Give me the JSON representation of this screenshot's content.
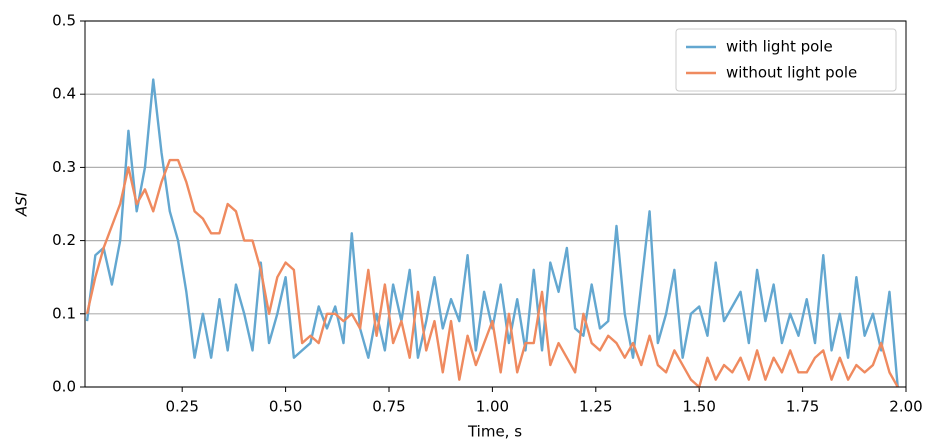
{
  "chart_data": {
    "type": "line",
    "xlabel": "Time, s",
    "ylabel": "ASI",
    "x": [
      0.02,
      0.04,
      0.06,
      0.08,
      0.1,
      0.12,
      0.14,
      0.16,
      0.18,
      0.2,
      0.22,
      0.24,
      0.26,
      0.28,
      0.3,
      0.32,
      0.34,
      0.36,
      0.38,
      0.4,
      0.42,
      0.44,
      0.46,
      0.48,
      0.5,
      0.52,
      0.54,
      0.56,
      0.58,
      0.6,
      0.62,
      0.64,
      0.66,
      0.68,
      0.7,
      0.72,
      0.74,
      0.76,
      0.78,
      0.8,
      0.82,
      0.84,
      0.86,
      0.88,
      0.9,
      0.92,
      0.94,
      0.96,
      0.98,
      1.0,
      1.02,
      1.04,
      1.06,
      1.08,
      1.1,
      1.12,
      1.14,
      1.16,
      1.18,
      1.2,
      1.22,
      1.24,
      1.26,
      1.28,
      1.3,
      1.32,
      1.34,
      1.36,
      1.38,
      1.4,
      1.42,
      1.44,
      1.46,
      1.48,
      1.5,
      1.52,
      1.54,
      1.56,
      1.58,
      1.6,
      1.62,
      1.64,
      1.66,
      1.68,
      1.7,
      1.72,
      1.74,
      1.76,
      1.78,
      1.8,
      1.82,
      1.84,
      1.86,
      1.88,
      1.9,
      1.92,
      1.94,
      1.96,
      1.98
    ],
    "series": [
      {
        "name": "with light pole",
        "color": "#63a7d0",
        "values": [
          0.09,
          0.18,
          0.19,
          0.14,
          0.2,
          0.35,
          0.24,
          0.3,
          0.42,
          0.32,
          0.24,
          0.2,
          0.13,
          0.04,
          0.1,
          0.04,
          0.12,
          0.05,
          0.14,
          0.1,
          0.05,
          0.17,
          0.06,
          0.1,
          0.15,
          0.04,
          0.05,
          0.06,
          0.11,
          0.08,
          0.11,
          0.06,
          0.21,
          0.08,
          0.04,
          0.1,
          0.05,
          0.14,
          0.09,
          0.16,
          0.04,
          0.09,
          0.15,
          0.08,
          0.12,
          0.09,
          0.18,
          0.05,
          0.13,
          0.08,
          0.14,
          0.06,
          0.12,
          0.05,
          0.16,
          0.05,
          0.17,
          0.13,
          0.19,
          0.08,
          0.07,
          0.14,
          0.08,
          0.09,
          0.22,
          0.1,
          0.04,
          0.14,
          0.24,
          0.06,
          0.1,
          0.16,
          0.04,
          0.1,
          0.11,
          0.07,
          0.17,
          0.09,
          0.11,
          0.13,
          0.06,
          0.16,
          0.09,
          0.14,
          0.06,
          0.1,
          0.07,
          0.12,
          0.06,
          0.18,
          0.05,
          0.1,
          0.04,
          0.15,
          0.07,
          0.1,
          0.05,
          0.13,
          0.0
        ]
      },
      {
        "name": "without light pole",
        "color": "#ef8a5f",
        "values": [
          0.1,
          0.15,
          0.19,
          0.22,
          0.25,
          0.3,
          0.25,
          0.27,
          0.24,
          0.28,
          0.31,
          0.31,
          0.28,
          0.24,
          0.23,
          0.21,
          0.21,
          0.25,
          0.24,
          0.2,
          0.2,
          0.16,
          0.1,
          0.15,
          0.17,
          0.16,
          0.06,
          0.07,
          0.06,
          0.1,
          0.1,
          0.09,
          0.1,
          0.08,
          0.16,
          0.07,
          0.14,
          0.06,
          0.09,
          0.04,
          0.13,
          0.05,
          0.09,
          0.02,
          0.09,
          0.01,
          0.07,
          0.03,
          0.06,
          0.09,
          0.02,
          0.1,
          0.02,
          0.06,
          0.06,
          0.13,
          0.03,
          0.06,
          0.04,
          0.02,
          0.1,
          0.06,
          0.05,
          0.07,
          0.06,
          0.04,
          0.06,
          0.03,
          0.07,
          0.03,
          0.02,
          0.05,
          0.03,
          0.01,
          0.0,
          0.04,
          0.01,
          0.03,
          0.02,
          0.04,
          0.01,
          0.05,
          0.01,
          0.04,
          0.02,
          0.05,
          0.02,
          0.02,
          0.04,
          0.05,
          0.01,
          0.04,
          0.01,
          0.03,
          0.02,
          0.03,
          0.06,
          0.02,
          0.0
        ]
      }
    ],
    "xlim": [
      0.015,
      2.0
    ],
    "xticks": [
      0.25,
      {
        "value": 0.5,
        "label": "0.50"
      },
      0.75,
      {
        "value": 1.0,
        "label": "1.00"
      },
      1.25,
      {
        "value": 1.5,
        "label": "1.50"
      },
      1.75,
      {
        "value": 2.0,
        "label": "2.00"
      }
    ],
    "ylim": [
      0,
      0.5
    ],
    "yticks": [
      {
        "value": 0,
        "label": "0.0"
      },
      0.1,
      0.2,
      0.3,
      0.4,
      0.5
    ],
    "grid": true,
    "legend": "upper right"
  }
}
